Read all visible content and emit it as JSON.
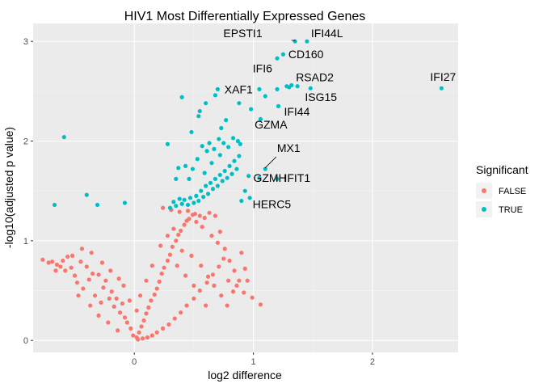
{
  "chart_data": {
    "type": "scatter",
    "title": "HIV1 Most Differentially Expressed Genes",
    "xlabel": "log2 difference",
    "ylabel": "-log10(adjusted p value)",
    "xlim": [
      -0.85,
      2.72
    ],
    "ylim": [
      -0.12,
      3.18
    ],
    "x_ticks": [
      0,
      1,
      2
    ],
    "y_ticks": [
      0,
      1,
      2,
      3
    ],
    "grid": true,
    "legend": {
      "title": "Significant",
      "position": "right",
      "entries": [
        {
          "label": "FALSE",
          "color": "#F8766D"
        },
        {
          "label": "TRUE",
          "color": "#00BFC4"
        }
      ]
    },
    "colors": {
      "false": "#F8766D",
      "true": "#00BFC4",
      "panel": "#EBEBEB",
      "grid": "#FFFFFF"
    },
    "series": [
      {
        "name": "FALSE",
        "color": "#F8766D",
        "points": [
          [
            -0.69,
            0.79
          ],
          [
            -0.65,
            0.76
          ],
          [
            -0.62,
            0.74
          ],
          [
            -0.58,
            0.7
          ],
          [
            -0.56,
            0.84
          ],
          [
            -0.53,
            0.73
          ],
          [
            -0.5,
            0.65
          ],
          [
            -0.48,
            0.58
          ],
          [
            -0.45,
            0.79
          ],
          [
            -0.43,
            0.52
          ],
          [
            -0.4,
            0.74
          ],
          [
            -0.38,
            0.61
          ],
          [
            -0.35,
            0.67
          ],
          [
            -0.33,
            0.45
          ],
          [
            -0.3,
            0.66
          ],
          [
            -0.28,
            0.38
          ],
          [
            -0.26,
            0.53
          ],
          [
            -0.24,
            0.6
          ],
          [
            -0.21,
            0.42
          ],
          [
            -0.19,
            0.49
          ],
          [
            -0.17,
            0.34
          ],
          [
            -0.15,
            0.42
          ],
          [
            -0.12,
            0.28
          ],
          [
            -0.1,
            0.37
          ],
          [
            -0.08,
            0.23
          ],
          [
            -0.06,
            0.18
          ],
          [
            -0.03,
            0.12
          ],
          [
            -0.01,
            0.05
          ],
          [
            0.02,
            0.03
          ],
          [
            0.04,
            0.08
          ],
          [
            0.06,
            0.14
          ],
          [
            0.08,
            0.2
          ],
          [
            0.1,
            0.27
          ],
          [
            0.12,
            0.33
          ],
          [
            0.14,
            0.4
          ],
          [
            0.17,
            0.46
          ],
          [
            0.19,
            0.52
          ],
          [
            0.21,
            0.59
          ],
          [
            0.23,
            0.67
          ],
          [
            0.25,
            0.73
          ],
          [
            0.28,
            0.8
          ],
          [
            0.3,
            0.86
          ],
          [
            0.32,
            0.94
          ],
          [
            0.35,
            1.0
          ],
          [
            0.37,
            1.06
          ],
          [
            0.39,
            1.1
          ],
          [
            0.42,
            1.16
          ],
          [
            0.44,
            1.2
          ],
          [
            0.46,
            1.22
          ],
          [
            0.49,
            1.26
          ],
          [
            0.51,
            1.27
          ],
          [
            0.55,
            1.25
          ],
          [
            0.59,
            1.23
          ],
          [
            0.63,
            1.28
          ],
          [
            0.68,
            1.25
          ],
          [
            0.72,
            1.09
          ],
          [
            0.76,
            0.92
          ],
          [
            0.8,
            0.8
          ],
          [
            0.84,
            0.7
          ],
          [
            0.88,
            0.6
          ],
          [
            0.92,
            0.48
          ],
          [
            0.95,
            0.6
          ],
          [
            0.99,
            0.43
          ],
          [
            1.06,
            0.36
          ],
          [
            0.83,
            0.49
          ],
          [
            0.9,
            0.88
          ],
          [
            0.7,
            0.98
          ],
          [
            0.65,
            1.05
          ],
          [
            0.57,
            1.14
          ],
          [
            0.52,
            1.19
          ],
          [
            0.24,
            1.33
          ],
          [
            0.31,
            1.31
          ],
          [
            0.38,
            1.29
          ],
          [
            0.45,
            1.3
          ],
          [
            0.33,
            1.12
          ],
          [
            0.28,
            1.05
          ],
          [
            0.22,
            0.95
          ],
          [
            0.4,
            0.9
          ],
          [
            0.48,
            0.85
          ],
          [
            0.56,
            0.75
          ],
          [
            0.62,
            0.64
          ],
          [
            0.67,
            0.55
          ],
          [
            0.73,
            0.45
          ],
          [
            0.78,
            0.35
          ],
          [
            0.6,
            0.35
          ],
          [
            0.5,
            0.55
          ],
          [
            0.43,
            0.65
          ],
          [
            0.36,
            0.75
          ],
          [
            0.15,
            0.75
          ],
          [
            0.1,
            0.6
          ],
          [
            0.05,
            0.45
          ],
          [
            0.02,
            0.3
          ],
          [
            -0.04,
            0.4
          ],
          [
            -0.09,
            0.55
          ],
          [
            -0.13,
            0.62
          ],
          [
            -0.2,
            0.7
          ],
          [
            -0.27,
            0.78
          ],
          [
            -0.36,
            0.88
          ],
          [
            -0.44,
            0.92
          ],
          [
            -0.52,
            0.85
          ],
          [
            -0.6,
            0.8
          ],
          [
            -0.66,
            0.7
          ],
          [
            -0.72,
            0.78
          ],
          [
            -0.77,
            0.81
          ],
          [
            -0.47,
            0.45
          ],
          [
            -0.37,
            0.35
          ],
          [
            -0.3,
            0.25
          ],
          [
            -0.22,
            0.18
          ],
          [
            -0.14,
            0.1
          ],
          [
            0.03,
            0.01
          ],
          [
            0.07,
            0.02
          ],
          [
            0.11,
            0.03
          ],
          [
            0.15,
            0.05
          ],
          [
            0.19,
            0.08
          ],
          [
            0.24,
            0.12
          ],
          [
            0.29,
            0.16
          ],
          [
            0.34,
            0.22
          ],
          [
            0.39,
            0.28
          ],
          [
            0.44,
            0.35
          ],
          [
            0.5,
            0.42
          ],
          [
            0.55,
            0.5
          ],
          [
            0.61,
            0.58
          ],
          [
            0.66,
            0.66
          ],
          [
            0.71,
            0.74
          ],
          [
            0.75,
            0.82
          ],
          [
            0.79,
            0.6
          ],
          [
            0.86,
            0.55
          ],
          [
            0.93,
            0.72
          ]
        ]
      },
      {
        "name": "TRUE",
        "color": "#00BFC4",
        "points": [
          [
            -0.59,
            2.04
          ],
          [
            -0.67,
            1.36
          ],
          [
            -0.4,
            1.46
          ],
          [
            -0.31,
            1.36
          ],
          [
            -0.08,
            1.38
          ],
          [
            0.3,
            1.33
          ],
          [
            0.33,
            1.39
          ],
          [
            0.35,
            1.35
          ],
          [
            0.38,
            1.42
          ],
          [
            0.4,
            1.37
          ],
          [
            0.42,
            1.41
          ],
          [
            0.45,
            1.36
          ],
          [
            0.47,
            1.43
          ],
          [
            0.5,
            1.38
          ],
          [
            0.52,
            1.45
          ],
          [
            0.54,
            1.4
          ],
          [
            0.56,
            1.5
          ],
          [
            0.58,
            1.44
          ],
          [
            0.6,
            1.55
          ],
          [
            0.62,
            1.47
          ],
          [
            0.64,
            1.58
          ],
          [
            0.66,
            1.52
          ],
          [
            0.68,
            1.62
          ],
          [
            0.7,
            1.55
          ],
          [
            0.72,
            1.66
          ],
          [
            0.74,
            1.6
          ],
          [
            0.76,
            1.7
          ],
          [
            0.78,
            1.63
          ],
          [
            0.8,
            1.75
          ],
          [
            0.82,
            1.67
          ],
          [
            0.84,
            1.8
          ],
          [
            0.86,
            1.72
          ],
          [
            0.88,
            1.85
          ],
          [
            0.9,
            1.4
          ],
          [
            0.93,
            1.5
          ],
          [
            0.96,
            1.65
          ],
          [
            0.28,
            1.97
          ],
          [
            0.35,
            1.62
          ],
          [
            0.37,
            1.73
          ],
          [
            0.43,
            1.75
          ],
          [
            0.46,
            1.62
          ],
          [
            0.49,
            1.72
          ],
          [
            0.53,
            1.82
          ],
          [
            0.57,
            1.95
          ],
          [
            0.61,
            1.9
          ],
          [
            0.63,
            1.98
          ],
          [
            0.67,
            1.92
          ],
          [
            0.71,
            2.02
          ],
          [
            0.75,
            1.98
          ],
          [
            0.79,
            1.94
          ],
          [
            0.83,
            2.03
          ],
          [
            0.87,
            2.0
          ],
          [
            0.89,
            1.97
          ],
          [
            0.72,
            1.86
          ],
          [
            0.65,
            1.78
          ],
          [
            0.59,
            1.68
          ],
          [
            0.48,
            2.09
          ],
          [
            0.54,
            2.25
          ],
          [
            0.6,
            2.38
          ],
          [
            0.68,
            2.46
          ],
          [
            0.73,
            2.13
          ],
          [
            0.77,
            2.21
          ],
          [
            0.88,
            2.38
          ],
          [
            0.55,
            2.3
          ],
          [
            0.4,
            2.44
          ],
          [
            0.7,
            2.52
          ],
          [
            1.05,
            2.52
          ],
          [
            1.1,
            2.45
          ],
          [
            1.2,
            2.52
          ],
          [
            1.28,
            2.55
          ],
          [
            1.32,
            2.56
          ],
          [
            1.48,
            2.53
          ],
          [
            1.21,
            2.35
          ],
          [
            1.2,
            2.83
          ],
          [
            1.25,
            2.87
          ],
          [
            1.35,
            3.0
          ],
          [
            1.45,
            3.0
          ],
          [
            2.58,
            2.53
          ],
          [
            1.05,
            1.63
          ],
          [
            1.2,
            1.62
          ],
          [
            0.97,
            1.43
          ],
          [
            1.06,
            2.22
          ],
          [
            0.98,
            2.32
          ],
          [
            1.1,
            1.72
          ],
          [
            1.3,
            2.54
          ],
          [
            1.37,
            2.55
          ]
        ]
      }
    ],
    "annotations": [
      {
        "label": "EPSTI1",
        "x": 1.36,
        "y": 3.01
      },
      {
        "label": "IFI44L",
        "x": 1.45,
        "y": 3.01
      },
      {
        "label": "CD160",
        "x": 1.26,
        "y": 2.87
      },
      {
        "label": "IFI6",
        "x": 1.09,
        "y": 2.55
      },
      {
        "label": "RSAD2",
        "x": 1.33,
        "y": 2.55
      },
      {
        "label": "IFI27",
        "x": 2.58,
        "y": 2.53
      },
      {
        "label": "XAF1",
        "x": 0.73,
        "y": 2.52
      },
      {
        "label": "IFI44",
        "x": 1.23,
        "y": 2.36
      },
      {
        "label": "ISG15",
        "x": 1.46,
        "y": 2.53
      },
      {
        "label": "GZMA",
        "x": 0.99,
        "y": 2.29
      },
      {
        "label": "MX1",
        "x": 1.09,
        "y": 1.72
      },
      {
        "label": "GZMH",
        "x": 1.04,
        "y": 1.63
      },
      {
        "label": "IFIT1",
        "x": 1.23,
        "y": 1.63
      },
      {
        "label": "HERC5",
        "x": 0.96,
        "y": 1.44
      }
    ]
  }
}
